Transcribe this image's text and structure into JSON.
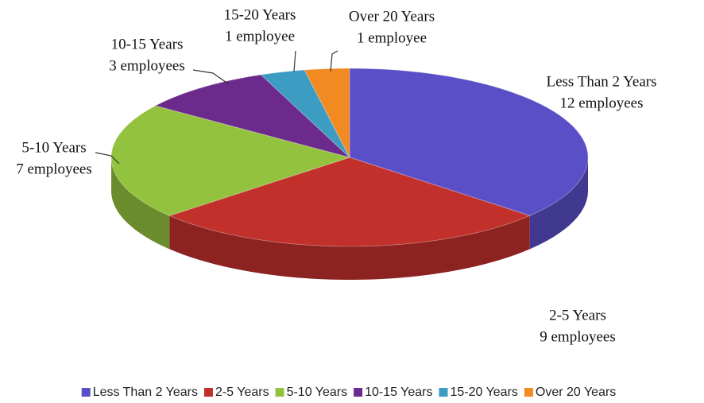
{
  "chart_data": {
    "type": "pie",
    "categories": [
      "Less Than 2 Years",
      "2-5 Years",
      "5-10 Years",
      "10-15 Years",
      "15-20 Years",
      "Over 20 Years"
    ],
    "values": [
      12,
      9,
      7,
      3,
      1,
      1
    ],
    "value_labels": [
      "12 employees",
      "9 employees",
      "7 employees",
      "3 employees",
      "1 employee",
      "1 employee"
    ],
    "colors": [
      "#5a4fc6",
      "#c2302c",
      "#93c23e",
      "#6c2b8c",
      "#3c9cc2",
      "#f28a22"
    ],
    "legend": "bottom"
  }
}
